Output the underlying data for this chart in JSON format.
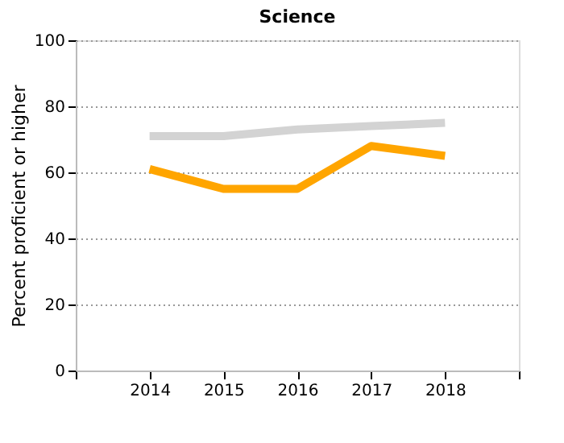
{
  "chart_data": {
    "type": "line",
    "title": "Science",
    "ylabel": "Percent proficient or higher",
    "x": [
      2014,
      2015,
      2016,
      2017,
      2018
    ],
    "series": [
      {
        "color": "#d3d3d3",
        "values": [
          71,
          71,
          73,
          74,
          75
        ]
      },
      {
        "color": "#ffa500",
        "values": [
          61,
          55,
          55,
          68,
          65
        ]
      }
    ],
    "xlim": [
      2013,
      2019
    ],
    "xticks": [
      {
        "value": 2013,
        "label": null
      },
      2014,
      2015,
      2016,
      2017,
      2018,
      {
        "value": 2019,
        "label": null
      }
    ],
    "ylim": [
      0,
      100
    ],
    "yticks": [
      0,
      20,
      40,
      60,
      80,
      100
    ],
    "grid": "y",
    "marker": "none",
    "line_style": "solid"
  }
}
